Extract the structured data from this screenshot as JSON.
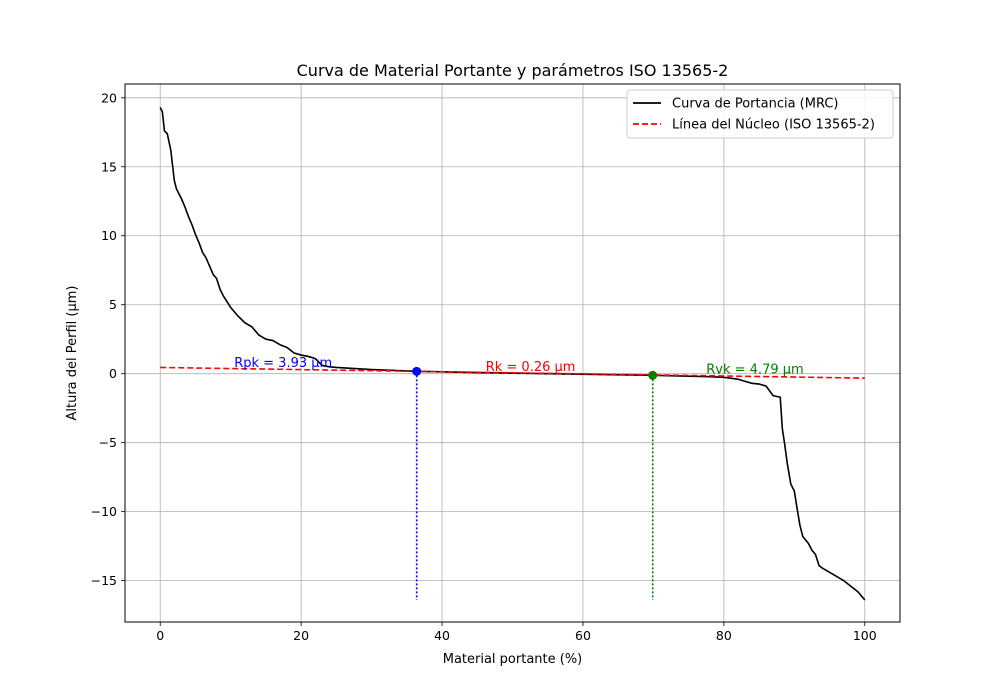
{
  "chart_data": {
    "type": "line",
    "title": "Curva de Material Portante y parámetros ISO 13565-2",
    "xlabel": "Material portante (%)",
    "ylabel": "Altura del Perfil (µm)",
    "xlim": [
      -5,
      105
    ],
    "ylim": [
      -18,
      21
    ],
    "xticks": [
      0,
      20,
      40,
      60,
      80,
      100
    ],
    "yticks": [
      -15,
      -10,
      -5,
      0,
      5,
      10,
      15,
      20
    ],
    "grid": true,
    "legend": {
      "placement": "top-right",
      "entries": [
        "Curva de Portancia (MRC)",
        "Línea del Núcleo (ISO 13565-2)"
      ]
    },
    "series": [
      {
        "name": "Curva de Portancia (MRC)",
        "color": "#000000",
        "style": "solid",
        "x": [
          0,
          0.3,
          0.6,
          1.0,
          1.5,
          2.0,
          2.3,
          2.6,
          3.0,
          3.5,
          4.0,
          4.5,
          5.0,
          5.5,
          6.0,
          6.5,
          7.0,
          7.5,
          8.0,
          8.5,
          9.0,
          9.5,
          10,
          11,
          12,
          13,
          14,
          15,
          16,
          17,
          18,
          19,
          20,
          21,
          22,
          23,
          24,
          25,
          30,
          36.4,
          45,
          55,
          65,
          69.9,
          75,
          78,
          80,
          82,
          84,
          85,
          86,
          87,
          88,
          88.3,
          88.6,
          89,
          89.5,
          90,
          90.4,
          90.8,
          91.2,
          92,
          92.5,
          93,
          93.5,
          94,
          95,
          96,
          97,
          98,
          99,
          99.5,
          100
        ],
        "y": [
          19.3,
          19.0,
          17.6,
          17.4,
          16.2,
          14.0,
          13.4,
          13.1,
          12.7,
          12.1,
          11.4,
          10.8,
          10.1,
          9.5,
          8.8,
          8.4,
          7.8,
          7.2,
          6.9,
          6.1,
          5.6,
          5.2,
          4.8,
          4.2,
          3.7,
          3.4,
          2.8,
          2.5,
          2.4,
          2.1,
          1.9,
          1.5,
          1.35,
          1.25,
          1.1,
          0.6,
          0.5,
          0.45,
          0.3,
          0.17,
          0.08,
          0.0,
          -0.08,
          -0.12,
          -0.18,
          -0.22,
          -0.26,
          -0.4,
          -0.7,
          -0.75,
          -0.9,
          -1.6,
          -1.7,
          -4.0,
          -5.0,
          -6.5,
          -8.0,
          -8.5,
          -9.8,
          -11.0,
          -11.8,
          -12.3,
          -12.8,
          -13.1,
          -13.9,
          -14.1,
          -14.4,
          -14.7,
          -15.0,
          -15.4,
          -15.8,
          -16.1,
          -16.4
        ]
      },
      {
        "name": "Línea del Núcleo (ISO 13565-2)",
        "color": "#ff0000",
        "style": "dashed",
        "x": [
          0,
          100
        ],
        "y": [
          0.45,
          -0.32
        ]
      }
    ],
    "points": [
      {
        "x": 36.4,
        "y": 0.17,
        "color": "#0000ff",
        "drop_to": -16.4
      },
      {
        "x": 69.9,
        "y": -0.12,
        "color": "#008000",
        "drop_to": -16.4
      }
    ],
    "annotations": [
      {
        "text": "Rpk = 3.93 µm",
        "x": 10.5,
        "y": 0.5,
        "color": "#0000ff"
      },
      {
        "text": "Rk = 0.26 µm",
        "x": 46.2,
        "y": 0.2,
        "color": "#ff0000"
      },
      {
        "text": "Rvk = 4.79 µm",
        "x": 77.5,
        "y": 0.0,
        "color": "#008000"
      }
    ]
  }
}
